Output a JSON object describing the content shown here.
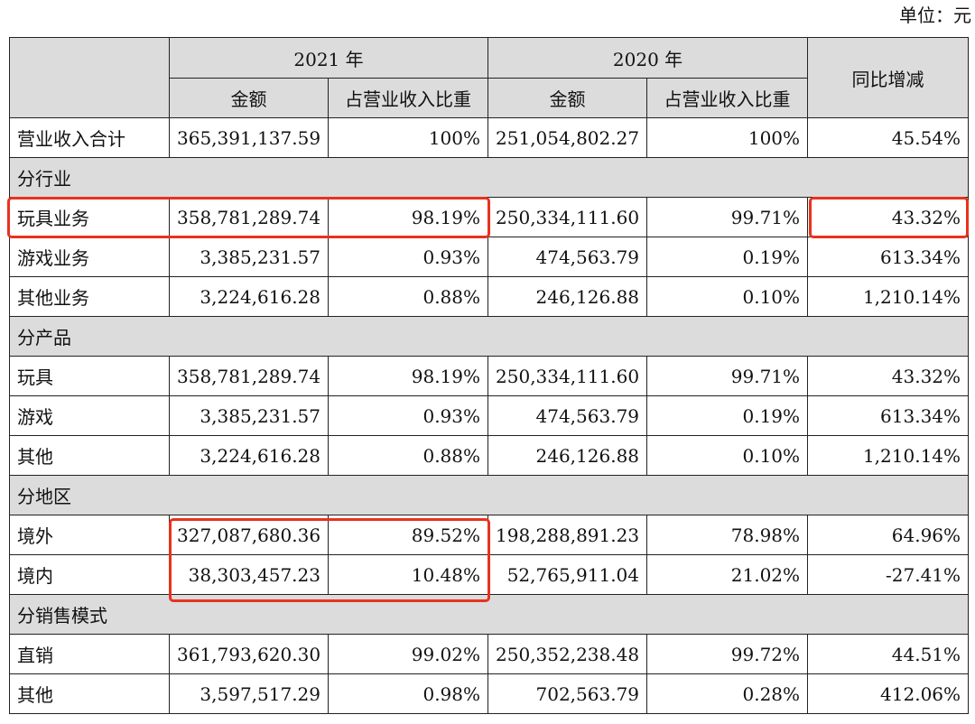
{
  "unit_label": "单位：元",
  "header": {
    "year_2021": "2021 年",
    "year_2020": "2020 年",
    "yoy": "同比增减",
    "amount": "金额",
    "ratio": "占营业收入比重"
  },
  "rows": [
    {
      "type": "data",
      "label": "营业收入合计",
      "a21": "365,391,137.59",
      "r21": "100%",
      "a20": "251,054,802.27",
      "r20": "100%",
      "yoy": "45.54%"
    },
    {
      "type": "section",
      "label": "分行业"
    },
    {
      "type": "data",
      "label": "玩具业务",
      "a21": "358,781,289.74",
      "r21": "98.19%",
      "a20": "250,334,111.60",
      "r20": "99.71%",
      "yoy": "43.32%"
    },
    {
      "type": "data",
      "label": "游戏业务",
      "a21": "3,385,231.57",
      "r21": "0.93%",
      "a20": "474,563.79",
      "r20": "0.19%",
      "yoy": "613.34%"
    },
    {
      "type": "data",
      "label": "其他业务",
      "a21": "3,224,616.28",
      "r21": "0.88%",
      "a20": "246,126.88",
      "r20": "0.10%",
      "yoy": "1,210.14%"
    },
    {
      "type": "section",
      "label": "分产品"
    },
    {
      "type": "data",
      "label": "玩具",
      "a21": "358,781,289.74",
      "r21": "98.19%",
      "a20": "250,334,111.60",
      "r20": "99.71%",
      "yoy": "43.32%"
    },
    {
      "type": "data",
      "label": "游戏",
      "a21": "3,385,231.57",
      "r21": "0.93%",
      "a20": "474,563.79",
      "r20": "0.19%",
      "yoy": "613.34%"
    },
    {
      "type": "data",
      "label": "其他",
      "a21": "3,224,616.28",
      "r21": "0.88%",
      "a20": "246,126.88",
      "r20": "0.10%",
      "yoy": "1,210.14%"
    },
    {
      "type": "section",
      "label": "分地区"
    },
    {
      "type": "data",
      "label": "境外",
      "a21": "327,087,680.36",
      "r21": "89.52%",
      "a20": "198,288,891.23",
      "r20": "78.98%",
      "yoy": "64.96%"
    },
    {
      "type": "data",
      "label": "境内",
      "a21": "38,303,457.23",
      "r21": "10.48%",
      "a20": "52,765,911.04",
      "r20": "21.02%",
      "yoy": "-27.41%"
    },
    {
      "type": "section",
      "label": "分销售模式"
    },
    {
      "type": "data",
      "label": "直销",
      "a21": "361,793,620.30",
      "r21": "99.02%",
      "a20": "250,352,238.48",
      "r20": "99.72%",
      "yoy": "44.51%"
    },
    {
      "type": "data",
      "label": "其他",
      "a21": "3,597,517.29",
      "r21": "0.98%",
      "a20": "702,563.79",
      "r20": "0.28%",
      "yoy": "412.06%"
    }
  ],
  "highlight_color": "#e8321e"
}
